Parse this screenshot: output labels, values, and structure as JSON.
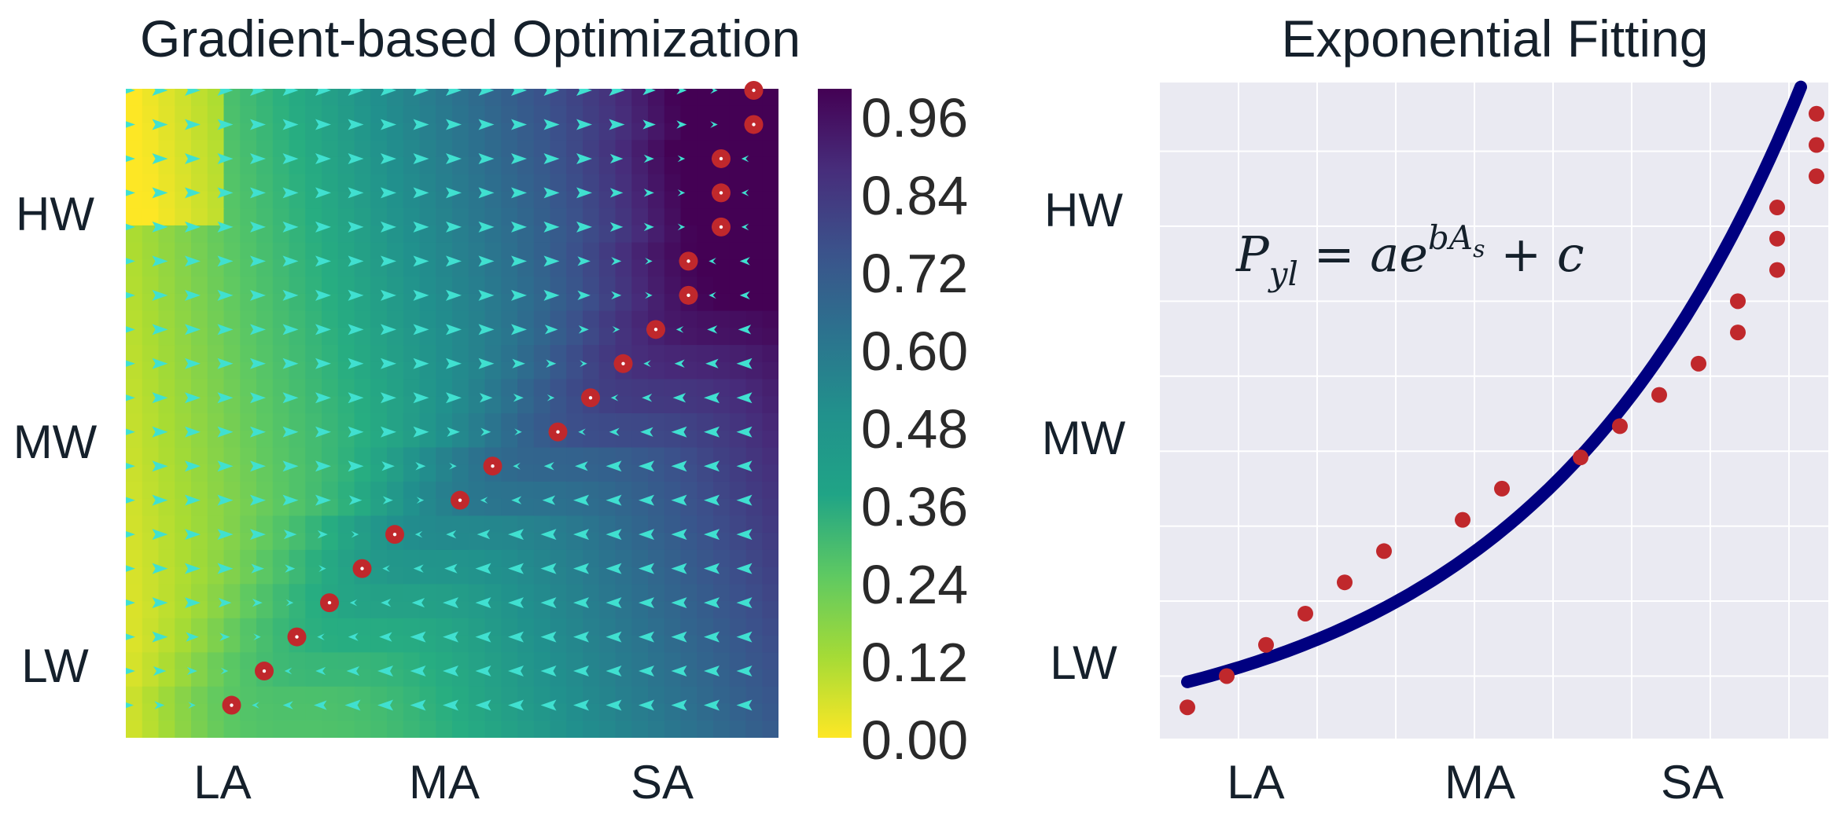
{
  "chart_data": [
    {
      "type": "heatmap",
      "title": "Gradient-based Optimization",
      "x_tick_labels": [
        "LA",
        "MA",
        "SA"
      ],
      "y_tick_labels": [
        "HW",
        "MW",
        "LW"
      ],
      "colormap": "viridis_r",
      "colorbar": {
        "ticks": [
          "0.96",
          "0.84",
          "0.72",
          "0.60",
          "0.48",
          "0.36",
          "0.24",
          "0.12",
          "0.00"
        ],
        "range": [
          0,
          1
        ]
      },
      "grid_size": [
        20,
        19
      ],
      "arrow_color": "#40e0d0",
      "path_color": "#c0282c",
      "path_points": [
        {
          "col": 3.0,
          "row": 18.0
        },
        {
          "col": 4.0,
          "row": 17.0
        },
        {
          "col": 5.0,
          "row": 16.0
        },
        {
          "col": 6.0,
          "row": 15.0
        },
        {
          "col": 7.0,
          "row": 14.0
        },
        {
          "col": 8.0,
          "row": 13.0
        },
        {
          "col": 10.0,
          "row": 12.0
        },
        {
          "col": 11.0,
          "row": 11.0
        },
        {
          "col": 13.0,
          "row": 10.0
        },
        {
          "col": 14.0,
          "row": 9.0
        },
        {
          "col": 15.0,
          "row": 8.0
        },
        {
          "col": 16.0,
          "row": 7.0
        },
        {
          "col": 17.0,
          "row": 6.0
        },
        {
          "col": 17.0,
          "row": 5.0
        },
        {
          "col": 18.0,
          "row": 4.0
        },
        {
          "col": 18.0,
          "row": 3.0
        },
        {
          "col": 18.0,
          "row": 2.0
        },
        {
          "col": 19.0,
          "row": 1.0
        },
        {
          "col": 19.0,
          "row": 0.0
        }
      ]
    },
    {
      "type": "scatter",
      "title": "Exponential Fitting",
      "x_tick_labels": [
        "LA",
        "MA",
        "SA"
      ],
      "y_tick_labels": [
        "HW",
        "MW",
        "LW"
      ],
      "equation": {
        "lhs": "P",
        "lhs_sub": "yl",
        "rhs_a": " = ae",
        "rhs_sup": "bA",
        "rhs_sup_sub": "s",
        "rhs_c": " + c"
      },
      "xlim": [
        0,
        17
      ],
      "ylim": [
        0,
        21
      ],
      "curve": {
        "a": 2.0,
        "b": 0.145,
        "c": -0.4,
        "x_range": [
          0.7,
          16.3
        ],
        "color": "#000080"
      },
      "points": {
        "color": "#c0282c",
        "x": [
          0.7,
          1.7,
          2.7,
          3.7,
          4.7,
          5.7,
          7.7,
          8.7,
          10.7,
          11.7,
          12.7,
          13.7,
          14.7,
          14.7,
          15.7,
          15.7,
          15.7,
          16.7,
          16.7,
          16.7
        ],
        "y": [
          1.0,
          2.0,
          3.0,
          4.0,
          5.0,
          6.0,
          7.0,
          8.0,
          9.0,
          10.0,
          11.0,
          12.0,
          13.0,
          14.0,
          15.0,
          16.0,
          17.0,
          18.0,
          19.0,
          20.0
        ]
      }
    }
  ]
}
